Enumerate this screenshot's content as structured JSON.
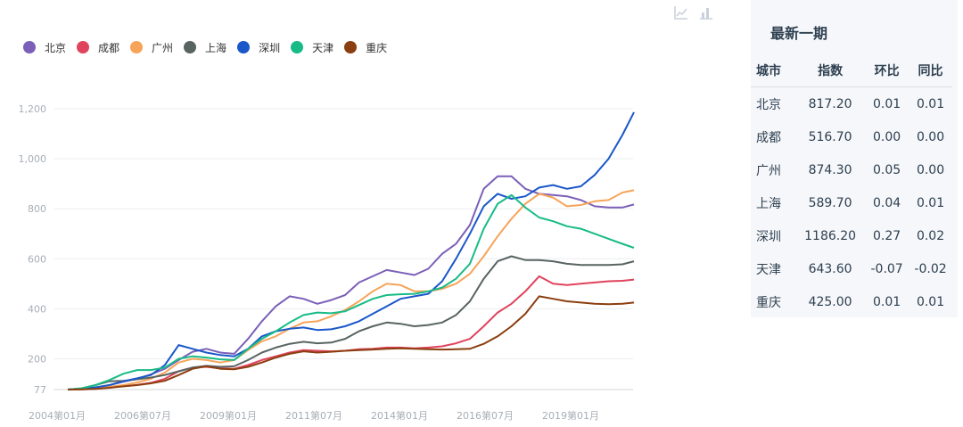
{
  "chart_data": {
    "type": "line",
    "x_axis_labels": [
      "2004第01月",
      "2006第07月",
      "2009第01月",
      "2011第07月",
      "2014第01月",
      "2016第07月",
      "2019第01月"
    ],
    "y_ticks": [
      77,
      200,
      400,
      600,
      800,
      "1,000",
      "1,200"
    ],
    "ylim": [
      77,
      1200
    ],
    "xlim_months": [
      0,
      196
    ],
    "grid": true,
    "legend_position": "top-left",
    "series": [
      {
        "name": "北京",
        "color": "#7b5fb8",
        "points": [
          [
            0,
            77
          ],
          [
            6,
            80
          ],
          [
            12,
            84
          ],
          [
            18,
            95
          ],
          [
            24,
            108
          ],
          [
            30,
            120
          ],
          [
            36,
            138
          ],
          [
            42,
            160
          ],
          [
            48,
            195
          ],
          [
            54,
            228
          ],
          [
            60,
            240
          ],
          [
            66,
            225
          ],
          [
            72,
            220
          ],
          [
            78,
            280
          ],
          [
            84,
            350
          ],
          [
            90,
            410
          ],
          [
            96,
            450
          ],
          [
            102,
            440
          ],
          [
            108,
            420
          ],
          [
            114,
            435
          ],
          [
            120,
            455
          ],
          [
            126,
            505
          ],
          [
            132,
            530
          ],
          [
            138,
            555
          ],
          [
            144,
            545
          ],
          [
            150,
            535
          ],
          [
            156,
            560
          ],
          [
            162,
            620
          ],
          [
            168,
            660
          ],
          [
            174,
            735
          ],
          [
            180,
            880
          ],
          [
            186,
            930
          ],
          [
            192,
            930
          ],
          [
            198,
            880
          ],
          [
            204,
            860
          ],
          [
            210,
            855
          ],
          [
            216,
            850
          ],
          [
            222,
            835
          ],
          [
            228,
            810
          ],
          [
            234,
            805
          ],
          [
            240,
            805
          ],
          [
            245,
            817
          ]
        ]
      },
      {
        "name": "成都",
        "color": "#e0435c",
        "points": [
          [
            0,
            77
          ],
          [
            6,
            78
          ],
          [
            12,
            80
          ],
          [
            18,
            85
          ],
          [
            24,
            90
          ],
          [
            30,
            96
          ],
          [
            36,
            104
          ],
          [
            42,
            120
          ],
          [
            48,
            150
          ],
          [
            54,
            165
          ],
          [
            60,
            168
          ],
          [
            66,
            162
          ],
          [
            72,
            160
          ],
          [
            78,
            175
          ],
          [
            84,
            195
          ],
          [
            90,
            210
          ],
          [
            96,
            225
          ],
          [
            102,
            235
          ],
          [
            108,
            232
          ],
          [
            114,
            230
          ],
          [
            120,
            232
          ],
          [
            126,
            238
          ],
          [
            132,
            240
          ],
          [
            138,
            245
          ],
          [
            144,
            245
          ],
          [
            150,
            242
          ],
          [
            156,
            245
          ],
          [
            162,
            250
          ],
          [
            168,
            262
          ],
          [
            174,
            280
          ],
          [
            180,
            330
          ],
          [
            186,
            385
          ],
          [
            192,
            420
          ],
          [
            198,
            470
          ],
          [
            204,
            530
          ],
          [
            210,
            500
          ],
          [
            216,
            495
          ],
          [
            222,
            500
          ],
          [
            228,
            505
          ],
          [
            234,
            510
          ],
          [
            240,
            512
          ],
          [
            245,
            517
          ]
        ]
      },
      {
        "name": "广州",
        "color": "#f6a45a",
        "points": [
          [
            0,
            77
          ],
          [
            6,
            79
          ],
          [
            12,
            82
          ],
          [
            18,
            88
          ],
          [
            24,
            95
          ],
          [
            30,
            105
          ],
          [
            36,
            120
          ],
          [
            42,
            145
          ],
          [
            48,
            185
          ],
          [
            54,
            200
          ],
          [
            60,
            195
          ],
          [
            66,
            185
          ],
          [
            72,
            195
          ],
          [
            78,
            235
          ],
          [
            84,
            270
          ],
          [
            90,
            290
          ],
          [
            96,
            320
          ],
          [
            102,
            345
          ],
          [
            108,
            350
          ],
          [
            114,
            370
          ],
          [
            120,
            395
          ],
          [
            126,
            430
          ],
          [
            132,
            470
          ],
          [
            138,
            500
          ],
          [
            144,
            495
          ],
          [
            150,
            470
          ],
          [
            156,
            470
          ],
          [
            162,
            480
          ],
          [
            168,
            500
          ],
          [
            174,
            540
          ],
          [
            180,
            610
          ],
          [
            186,
            690
          ],
          [
            192,
            760
          ],
          [
            198,
            820
          ],
          [
            204,
            860
          ],
          [
            210,
            845
          ],
          [
            216,
            810
          ],
          [
            222,
            815
          ],
          [
            228,
            830
          ],
          [
            234,
            835
          ],
          [
            240,
            865
          ],
          [
            245,
            874
          ]
        ]
      },
      {
        "name": "上海",
        "color": "#586462",
        "points": [
          [
            0,
            77
          ],
          [
            6,
            82
          ],
          [
            12,
            95
          ],
          [
            18,
            110
          ],
          [
            24,
            112
          ],
          [
            30,
            118
          ],
          [
            36,
            125
          ],
          [
            42,
            135
          ],
          [
            48,
            150
          ],
          [
            54,
            165
          ],
          [
            60,
            172
          ],
          [
            66,
            168
          ],
          [
            72,
            170
          ],
          [
            78,
            195
          ],
          [
            84,
            225
          ],
          [
            90,
            245
          ],
          [
            96,
            260
          ],
          [
            102,
            268
          ],
          [
            108,
            262
          ],
          [
            114,
            265
          ],
          [
            120,
            280
          ],
          [
            126,
            310
          ],
          [
            132,
            330
          ],
          [
            138,
            345
          ],
          [
            144,
            340
          ],
          [
            150,
            330
          ],
          [
            156,
            335
          ],
          [
            162,
            345
          ],
          [
            168,
            375
          ],
          [
            174,
            430
          ],
          [
            180,
            520
          ],
          [
            186,
            590
          ],
          [
            192,
            610
          ],
          [
            198,
            595
          ],
          [
            204,
            595
          ],
          [
            210,
            590
          ],
          [
            216,
            580
          ],
          [
            222,
            575
          ],
          [
            228,
            575
          ],
          [
            234,
            575
          ],
          [
            240,
            578
          ],
          [
            245,
            590
          ]
        ]
      },
      {
        "name": "深圳",
        "color": "#1a57c9",
        "points": [
          [
            0,
            77
          ],
          [
            6,
            80
          ],
          [
            12,
            86
          ],
          [
            18,
            95
          ],
          [
            24,
            110
          ],
          [
            30,
            122
          ],
          [
            36,
            135
          ],
          [
            42,
            175
          ],
          [
            48,
            255
          ],
          [
            54,
            240
          ],
          [
            60,
            225
          ],
          [
            66,
            215
          ],
          [
            72,
            210
          ],
          [
            78,
            240
          ],
          [
            84,
            290
          ],
          [
            90,
            310
          ],
          [
            96,
            320
          ],
          [
            102,
            325
          ],
          [
            108,
            315
          ],
          [
            114,
            318
          ],
          [
            120,
            330
          ],
          [
            126,
            350
          ],
          [
            132,
            380
          ],
          [
            138,
            410
          ],
          [
            144,
            440
          ],
          [
            150,
            450
          ],
          [
            156,
            460
          ],
          [
            162,
            510
          ],
          [
            168,
            600
          ],
          [
            174,
            700
          ],
          [
            180,
            810
          ],
          [
            186,
            860
          ],
          [
            192,
            840
          ],
          [
            198,
            850
          ],
          [
            204,
            885
          ],
          [
            210,
            895
          ],
          [
            216,
            880
          ],
          [
            222,
            890
          ],
          [
            228,
            935
          ],
          [
            234,
            1000
          ],
          [
            240,
            1095
          ],
          [
            245,
            1186
          ]
        ]
      },
      {
        "name": "天津",
        "color": "#18bb86",
        "points": [
          [
            0,
            77
          ],
          [
            6,
            82
          ],
          [
            12,
            95
          ],
          [
            18,
            115
          ],
          [
            24,
            140
          ],
          [
            30,
            155
          ],
          [
            36,
            155
          ],
          [
            42,
            165
          ],
          [
            48,
            200
          ],
          [
            54,
            210
          ],
          [
            60,
            205
          ],
          [
            66,
            198
          ],
          [
            72,
            195
          ],
          [
            78,
            240
          ],
          [
            84,
            280
          ],
          [
            90,
            310
          ],
          [
            96,
            345
          ],
          [
            102,
            375
          ],
          [
            108,
            385
          ],
          [
            114,
            382
          ],
          [
            120,
            390
          ],
          [
            126,
            415
          ],
          [
            132,
            440
          ],
          [
            138,
            455
          ],
          [
            144,
            458
          ],
          [
            150,
            460
          ],
          [
            156,
            470
          ],
          [
            162,
            485
          ],
          [
            168,
            520
          ],
          [
            174,
            580
          ],
          [
            180,
            720
          ],
          [
            186,
            820
          ],
          [
            192,
            855
          ],
          [
            198,
            805
          ],
          [
            204,
            765
          ],
          [
            210,
            750
          ],
          [
            216,
            730
          ],
          [
            222,
            720
          ],
          [
            228,
            700
          ],
          [
            234,
            680
          ],
          [
            240,
            660
          ],
          [
            245,
            644
          ]
        ]
      },
      {
        "name": "重庆",
        "color": "#8b3e10",
        "points": [
          [
            0,
            77
          ],
          [
            6,
            78
          ],
          [
            12,
            80
          ],
          [
            18,
            84
          ],
          [
            24,
            90
          ],
          [
            30,
            95
          ],
          [
            36,
            102
          ],
          [
            42,
            112
          ],
          [
            48,
            135
          ],
          [
            54,
            160
          ],
          [
            60,
            170
          ],
          [
            66,
            160
          ],
          [
            72,
            158
          ],
          [
            78,
            168
          ],
          [
            84,
            185
          ],
          [
            90,
            205
          ],
          [
            96,
            220
          ],
          [
            102,
            230
          ],
          [
            108,
            225
          ],
          [
            114,
            228
          ],
          [
            120,
            232
          ],
          [
            126,
            235
          ],
          [
            132,
            237
          ],
          [
            138,
            240
          ],
          [
            144,
            242
          ],
          [
            150,
            240
          ],
          [
            156,
            238
          ],
          [
            162,
            237
          ],
          [
            168,
            238
          ],
          [
            174,
            240
          ],
          [
            180,
            260
          ],
          [
            186,
            290
          ],
          [
            192,
            330
          ],
          [
            198,
            380
          ],
          [
            204,
            450
          ],
          [
            210,
            440
          ],
          [
            216,
            430
          ],
          [
            222,
            425
          ],
          [
            228,
            420
          ],
          [
            234,
            418
          ],
          [
            240,
            420
          ],
          [
            245,
            425
          ]
        ]
      }
    ]
  },
  "panel": {
    "title": "最新一期",
    "headers": [
      "城市",
      "指数",
      "环比",
      "同比"
    ],
    "rows": [
      [
        "北京",
        "817.20",
        "0.01",
        "0.01"
      ],
      [
        "成都",
        "516.70",
        "0.00",
        "0.00"
      ],
      [
        "广州",
        "874.30",
        "0.05",
        "0.00"
      ],
      [
        "上海",
        "589.70",
        "0.04",
        "0.01"
      ],
      [
        "深圳",
        "1186.20",
        "0.27",
        "0.02"
      ],
      [
        "天津",
        "643.60",
        "-0.07",
        "-0.02"
      ],
      [
        "重庆",
        "425.00",
        "0.01",
        "0.01"
      ]
    ]
  },
  "toolbox": {
    "icons": [
      "line-chart-icon",
      "bar-chart-icon"
    ]
  }
}
